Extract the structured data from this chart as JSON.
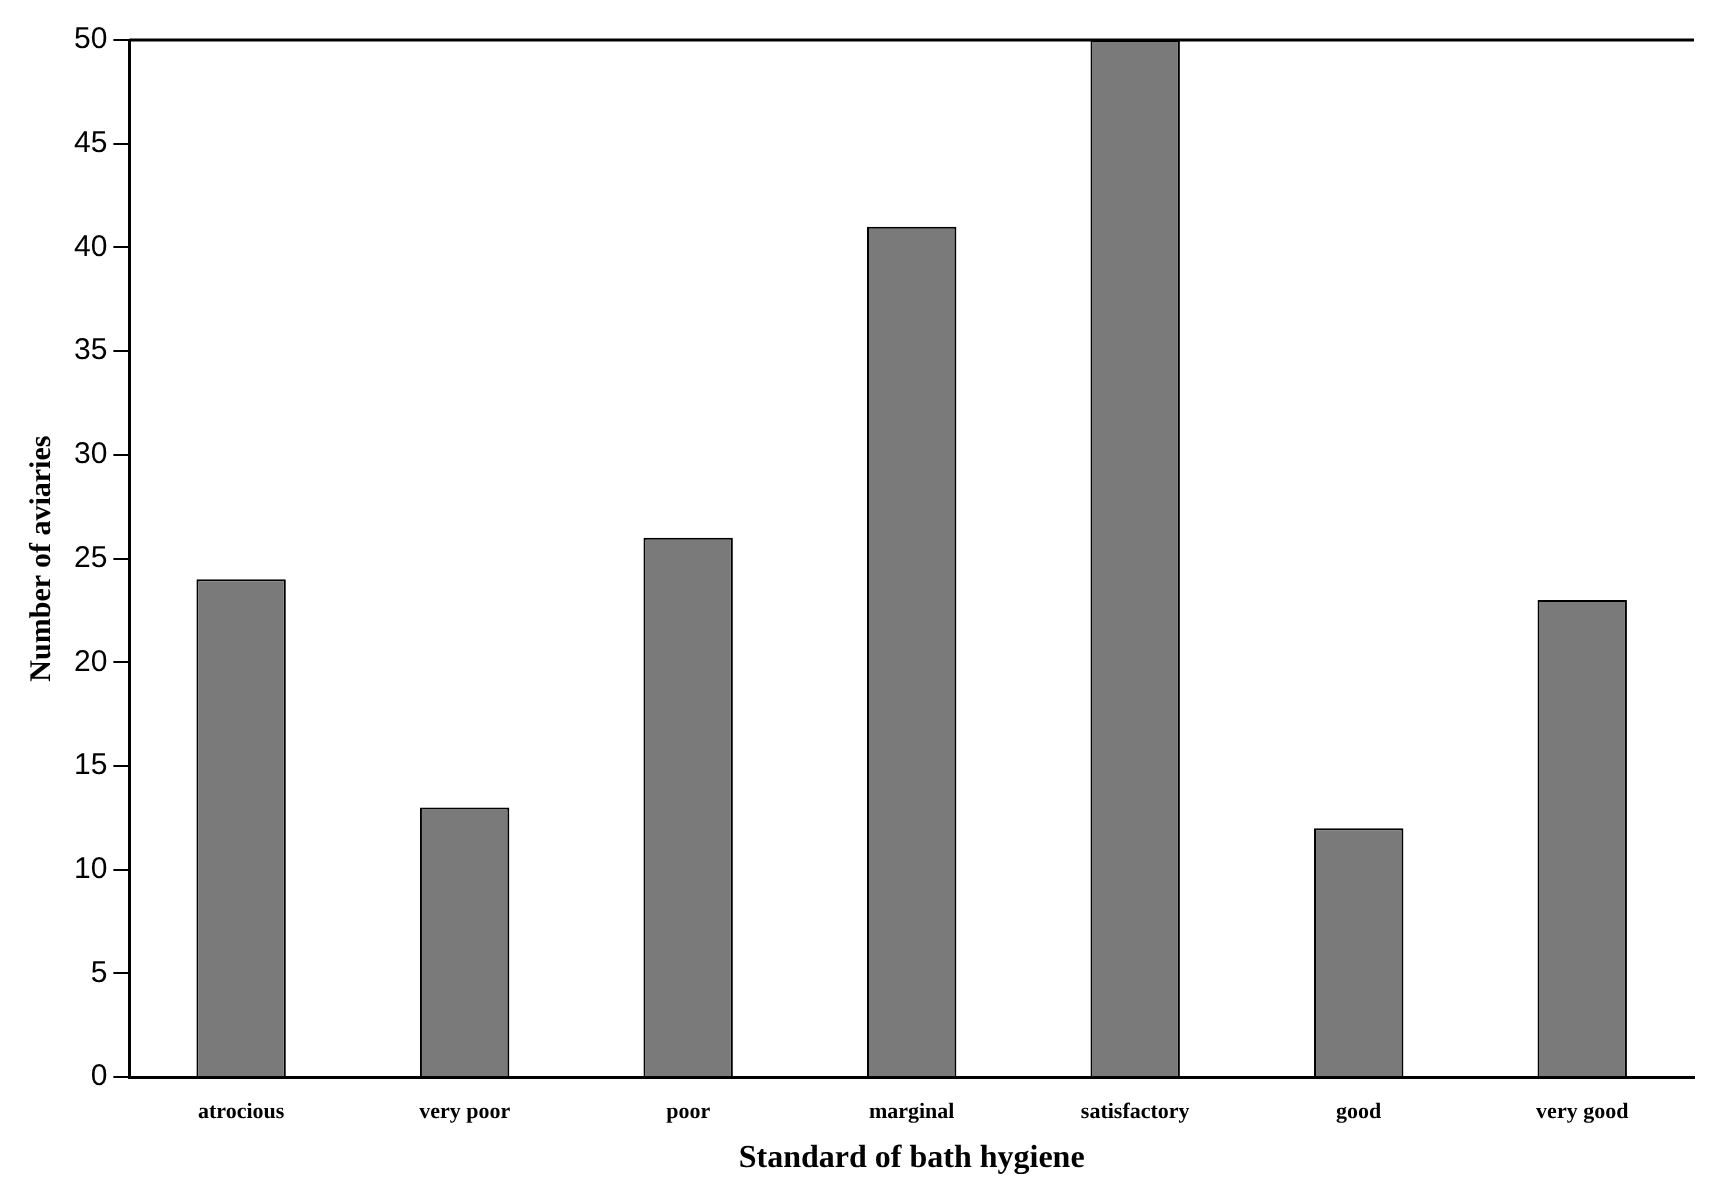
{
  "chart_data": {
    "type": "bar",
    "xlabel": "Standard of bath hygiene",
    "ylabel": "Number of aviaries",
    "categories": [
      "atrocious",
      "very poor",
      "poor",
      "marginal",
      "satisfactory",
      "good",
      "very good"
    ],
    "values": [
      24,
      13,
      26,
      41,
      50,
      12,
      23
    ],
    "color": "#7a7a7a",
    "ylim": [
      0,
      50
    ],
    "yticks": [
      0,
      5,
      10,
      15,
      20,
      25,
      30,
      35,
      40,
      45,
      50
    ],
    "grid": false,
    "legend": false
  }
}
